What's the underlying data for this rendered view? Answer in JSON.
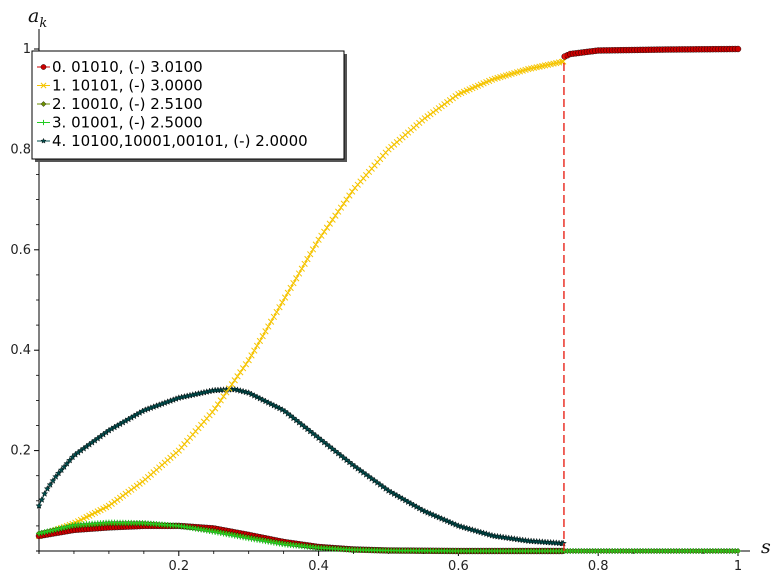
{
  "chart_data": {
    "type": "line",
    "xlabel": "s",
    "ylabel": "a_k",
    "xlim": [
      0,
      1
    ],
    "ylim": [
      0,
      1
    ],
    "x_ticks": [
      0.2,
      0.4,
      0.6,
      0.8,
      1
    ],
    "x_tick_labels": [
      "0.2",
      "0.4",
      "0.6",
      "0.8",
      "1"
    ],
    "y_ticks": [
      0.2,
      0.4,
      0.6,
      0.8,
      1
    ],
    "y_tick_labels": [
      "0.2",
      "0.4",
      "0.6",
      "0.8",
      "1"
    ],
    "grid": false,
    "legend_position": "top-left",
    "transition_s": 0.751,
    "series": [
      {
        "name": "0. 01010, (-) 3.0100",
        "color": "#cc0000",
        "marker": "circle",
        "x": [
          0,
          0.05,
          0.1,
          0.15,
          0.2,
          0.25,
          0.3,
          0.35,
          0.4,
          0.45,
          0.5,
          0.6,
          0.7,
          0.75,
          0.752,
          0.76,
          0.8,
          0.9,
          1.0
        ],
        "y": [
          0.03,
          0.042,
          0.047,
          0.05,
          0.05,
          0.045,
          0.032,
          0.018,
          0.008,
          0.003,
          0.001,
          0.0,
          0.0,
          0.0,
          0.985,
          0.99,
          0.997,
          0.999,
          1.0
        ]
      },
      {
        "name": "1. 10101, (-) 3.0000",
        "color": "#f5c400",
        "marker": "x",
        "x": [
          0,
          0.05,
          0.1,
          0.15,
          0.2,
          0.25,
          0.3,
          0.35,
          0.4,
          0.45,
          0.5,
          0.55,
          0.6,
          0.65,
          0.7,
          0.75
        ],
        "y": [
          0.03,
          0.055,
          0.09,
          0.14,
          0.2,
          0.28,
          0.38,
          0.5,
          0.62,
          0.72,
          0.8,
          0.86,
          0.91,
          0.94,
          0.96,
          0.975
        ]
      },
      {
        "name": "2. 10010, (-) 2.5100",
        "color": "#6b8e00",
        "marker": "diamond",
        "x": [
          0,
          0.05,
          0.1,
          0.15,
          0.2,
          0.25,
          0.3,
          0.35,
          0.4,
          0.45,
          0.5,
          0.6,
          0.7,
          0.8,
          0.9,
          1.0
        ],
        "y": [
          0.035,
          0.05,
          0.055,
          0.055,
          0.05,
          0.04,
          0.027,
          0.015,
          0.007,
          0.003,
          0.001,
          0.0,
          0.0,
          0.0,
          0.0,
          0.0
        ]
      },
      {
        "name": "3. 01001, (-) 2.5000",
        "color": "#22cc22",
        "marker": "plus",
        "x": [
          0,
          0.05,
          0.1,
          0.15,
          0.2,
          0.25,
          0.3,
          0.35,
          0.4,
          0.45,
          0.5,
          0.6,
          0.7,
          0.8,
          0.9,
          1.0
        ],
        "y": [
          0.035,
          0.052,
          0.057,
          0.056,
          0.05,
          0.038,
          0.025,
          0.013,
          0.006,
          0.002,
          0.001,
          0.0,
          0.0,
          0.0,
          0.0,
          0.0
        ]
      },
      {
        "name": "4. 10100,10001,00101, (-) 2.0000",
        "color": "#004c4c",
        "marker": "star",
        "x": [
          0,
          0.01,
          0.025,
          0.05,
          0.1,
          0.15,
          0.2,
          0.25,
          0.28,
          0.3,
          0.35,
          0.4,
          0.45,
          0.5,
          0.55,
          0.6,
          0.65,
          0.7,
          0.75
        ],
        "y": [
          0.09,
          0.12,
          0.15,
          0.19,
          0.24,
          0.28,
          0.305,
          0.32,
          0.322,
          0.315,
          0.28,
          0.225,
          0.17,
          0.12,
          0.08,
          0.05,
          0.03,
          0.02,
          0.015
        ]
      }
    ]
  }
}
